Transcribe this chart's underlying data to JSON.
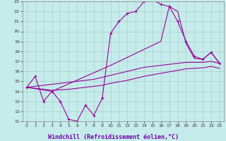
{
  "xlabel": "Windchill (Refroidissement éolien,°C)",
  "xlim": [
    -0.5,
    23.5
  ],
  "ylim": [
    11,
    23
  ],
  "xticks": [
    0,
    1,
    2,
    3,
    4,
    5,
    6,
    7,
    8,
    9,
    10,
    11,
    12,
    13,
    14,
    15,
    16,
    17,
    18,
    19,
    20,
    21,
    22,
    23
  ],
  "yticks": [
    11,
    12,
    13,
    14,
    15,
    16,
    17,
    18,
    19,
    20,
    21,
    22,
    23
  ],
  "bg_color": "#c5ecea",
  "grid_color": "#aacfcc",
  "line_color": "#990099",
  "line1_x": [
    0,
    1,
    2,
    3,
    4,
    5,
    6,
    7,
    8,
    9,
    10,
    11,
    12,
    13,
    14,
    15,
    16,
    17,
    18,
    19,
    20,
    21,
    22,
    23
  ],
  "line1_y": [
    14.4,
    15.5,
    13.0,
    14.0,
    13.0,
    11.2,
    11.0,
    12.6,
    11.6,
    13.3,
    19.8,
    21.0,
    21.8,
    22.0,
    23.0,
    23.2,
    22.7,
    22.5,
    21.0,
    19.0,
    17.5,
    17.2,
    17.9,
    16.8
  ],
  "line2_x": [
    0,
    3,
    10,
    11,
    12,
    13,
    14,
    15,
    16,
    17,
    18,
    19,
    20,
    21,
    22,
    23
  ],
  "line2_y": [
    14.4,
    14.0,
    16.6,
    17.0,
    17.4,
    17.8,
    18.2,
    18.6,
    19.0,
    22.5,
    22.0,
    18.8,
    17.3,
    17.2,
    17.9,
    16.8
  ],
  "line3_x": [
    0,
    1,
    2,
    3,
    4,
    5,
    6,
    7,
    8,
    9,
    10,
    11,
    12,
    13,
    14,
    15,
    16,
    17,
    18,
    19,
    20,
    21,
    22,
    23
  ],
  "line3_y": [
    14.4,
    14.5,
    14.6,
    14.7,
    14.8,
    14.9,
    15.0,
    15.1,
    15.2,
    15.4,
    15.6,
    15.8,
    16.0,
    16.2,
    16.4,
    16.5,
    16.6,
    16.7,
    16.8,
    16.9,
    16.9,
    16.9,
    17.0,
    16.8
  ],
  "line4_x": [
    0,
    1,
    2,
    3,
    4,
    5,
    6,
    7,
    8,
    9,
    10,
    11,
    12,
    13,
    14,
    15,
    16,
    17,
    18,
    19,
    20,
    21,
    22,
    23
  ],
  "line4_y": [
    14.4,
    14.3,
    14.2,
    14.1,
    14.15,
    14.2,
    14.3,
    14.4,
    14.5,
    14.6,
    14.8,
    14.95,
    15.1,
    15.3,
    15.5,
    15.65,
    15.8,
    15.95,
    16.1,
    16.25,
    16.3,
    16.35,
    16.5,
    16.3
  ]
}
